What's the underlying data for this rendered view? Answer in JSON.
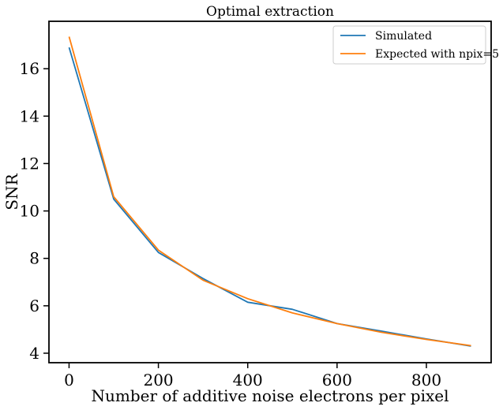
{
  "chart_data": {
    "type": "line",
    "title": "Optimal extraction",
    "xlabel": "Number of additive noise electrons per pixel",
    "ylabel": "SNR",
    "xlim": [
      -45,
      945
    ],
    "ylim": [
      3.6,
      18.0
    ],
    "xticks": [
      0,
      200,
      400,
      600,
      800
    ],
    "yticks": [
      4,
      6,
      8,
      10,
      12,
      14,
      16
    ],
    "grid": false,
    "legend_position": "top-right",
    "series": [
      {
        "name": "Simulated",
        "color": "#1f77b4",
        "x": [
          0,
          100,
          200,
          300,
          400,
          500,
          600,
          700,
          800,
          900
        ],
        "y": [
          16.9,
          10.5,
          8.25,
          7.15,
          6.15,
          5.85,
          5.25,
          4.93,
          4.6,
          4.3
        ]
      },
      {
        "name": "Expected with npix=5",
        "color": "#ff7f0e",
        "x": [
          0,
          100,
          200,
          300,
          400,
          500,
          600,
          700,
          800,
          900
        ],
        "y": [
          17.35,
          10.6,
          8.35,
          7.08,
          6.3,
          5.7,
          5.25,
          4.88,
          4.58,
          4.32
        ]
      }
    ]
  }
}
